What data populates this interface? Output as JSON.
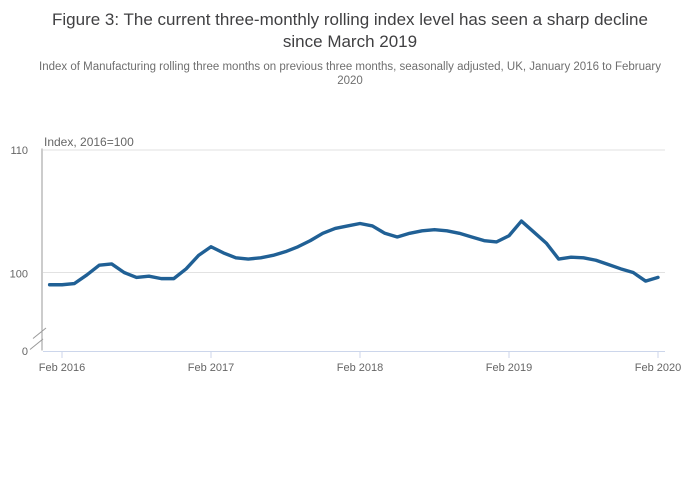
{
  "chart_data": {
    "type": "line",
    "title": "Figure 3: The current three-monthly rolling index level has seen a sharp decline since March 2019",
    "subtitle": "Index of Manufacturing rolling three months on previous three months, seasonally adjusted, UK, January 2016 to February 2020",
    "y_axis_title": "Index, 2016=100",
    "y_tick_labels": [
      "110",
      "100",
      "0"
    ],
    "x_tick_labels": [
      "Feb 2016",
      "Feb 2017",
      "Feb 2018",
      "Feb 2019",
      "Feb 2020"
    ],
    "y_axis_break": true,
    "ylim_displayed": [
      98,
      110
    ],
    "grid": "horizontal",
    "legend": "none",
    "frequency": "monthly",
    "x": [
      "2016-01",
      "2016-02",
      "2016-03",
      "2016-04",
      "2016-05",
      "2016-06",
      "2016-07",
      "2016-08",
      "2016-09",
      "2016-10",
      "2016-11",
      "2016-12",
      "2017-01",
      "2017-02",
      "2017-03",
      "2017-04",
      "2017-05",
      "2017-06",
      "2017-07",
      "2017-08",
      "2017-09",
      "2017-10",
      "2017-11",
      "2017-12",
      "2018-01",
      "2018-02",
      "2018-03",
      "2018-04",
      "2018-05",
      "2018-06",
      "2018-07",
      "2018-08",
      "2018-09",
      "2018-10",
      "2018-11",
      "2018-12",
      "2019-01",
      "2019-02",
      "2019-03",
      "2019-04",
      "2019-05",
      "2019-06",
      "2019-07",
      "2019-08",
      "2019-09",
      "2019-10",
      "2019-11",
      "2019-12",
      "2020-01",
      "2020-02"
    ],
    "series": [
      {
        "color": "#206095",
        "values": [
          99.0,
          99.0,
          99.1,
          99.8,
          100.6,
          100.7,
          100.0,
          99.6,
          99.7,
          99.5,
          99.5,
          100.3,
          101.4,
          102.1,
          101.6,
          101.2,
          101.1,
          101.2,
          101.4,
          101.7,
          102.1,
          102.6,
          103.2,
          103.6,
          103.8,
          104.0,
          103.8,
          103.2,
          102.9,
          103.2,
          103.4,
          103.5,
          103.4,
          103.2,
          102.9,
          102.6,
          102.5,
          103.0,
          104.2,
          103.3,
          102.4,
          101.1,
          101.25,
          101.2,
          101.0,
          100.65,
          100.3,
          100.0,
          99.3,
          99.6
        ]
      }
    ],
    "colors": {
      "line": "#206095",
      "x_axis": "#ccd6eb",
      "y_axis": "#999999",
      "grid": "#e2e2e2",
      "labels": "#666666",
      "title": "#404042",
      "subtitle": "#6f6f6f"
    }
  }
}
